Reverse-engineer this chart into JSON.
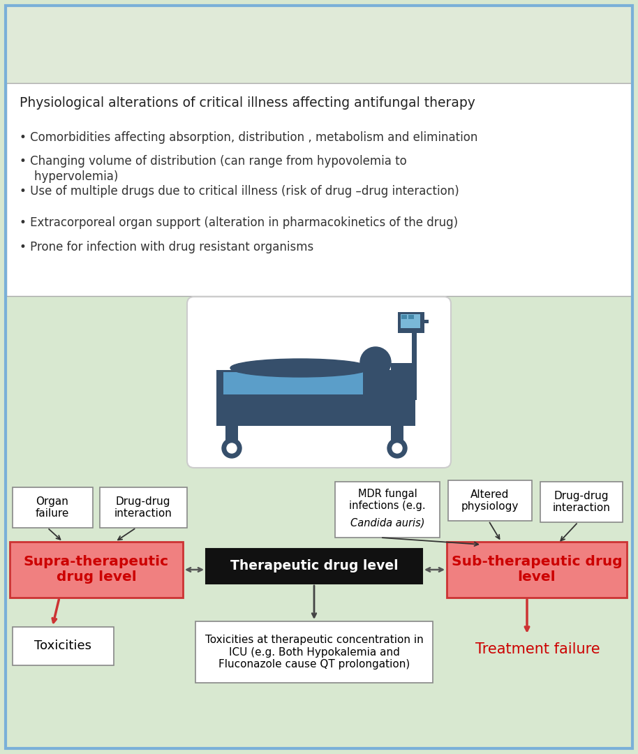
{
  "bg_green": "#d8e8d0",
  "bg_top_lighter": "#e0ead8",
  "white_box_bg": "#ffffff",
  "pink_box_bg": "#f08080",
  "pink_box_border": "#cc3333",
  "black_box_bg": "#111111",
  "border_color": "#7ab0d8",
  "title_text": "Physiological alterations of critical illness affecting antifungal therapy",
  "bullets": [
    "Comorbidities affecting absorption, distribution , metabolism and elimination",
    "Changing volume of distribution (can range from hypovolemia to\n    hypervolemia)",
    "Use of multiple drugs due to critical illness (risk of drug –drug interaction)",
    "Extracorporeal organ support (alteration in pharmacokinetics of the drug)",
    "Prone for infection with drug resistant organisms"
  ],
  "supra_label": "Supra-therapeutic\ndrug level",
  "sub_label": "Sub-therapeutic drug\nlevel",
  "therapeutic_label": "Therapeutic drug level",
  "organ_failure": "Organ\nfailure",
  "drug_drug_left": "Drug-drug\ninteraction",
  "mdr_fungal_normal": "MDR fungal\ninfections (e.g.\n",
  "mdr_fungal_italic": "Candida auris",
  "mdr_fungal_suffix": ")",
  "altered_physiology": "Altered\nphysiology",
  "drug_drug_right": "Drug-drug\ninteraction",
  "toxicities": "Toxicities",
  "treatment_failure": "Treatment failure",
  "tox_therapeutic": "Toxicities at therapeutic concentration in\nICU (e.g. Both Hypokalemia and\nFluconazole cause QT prolongation)",
  "bed_dark": "#364f6b",
  "bed_light": "#5b9ec9",
  "bed_blue": "#4a7fa5"
}
